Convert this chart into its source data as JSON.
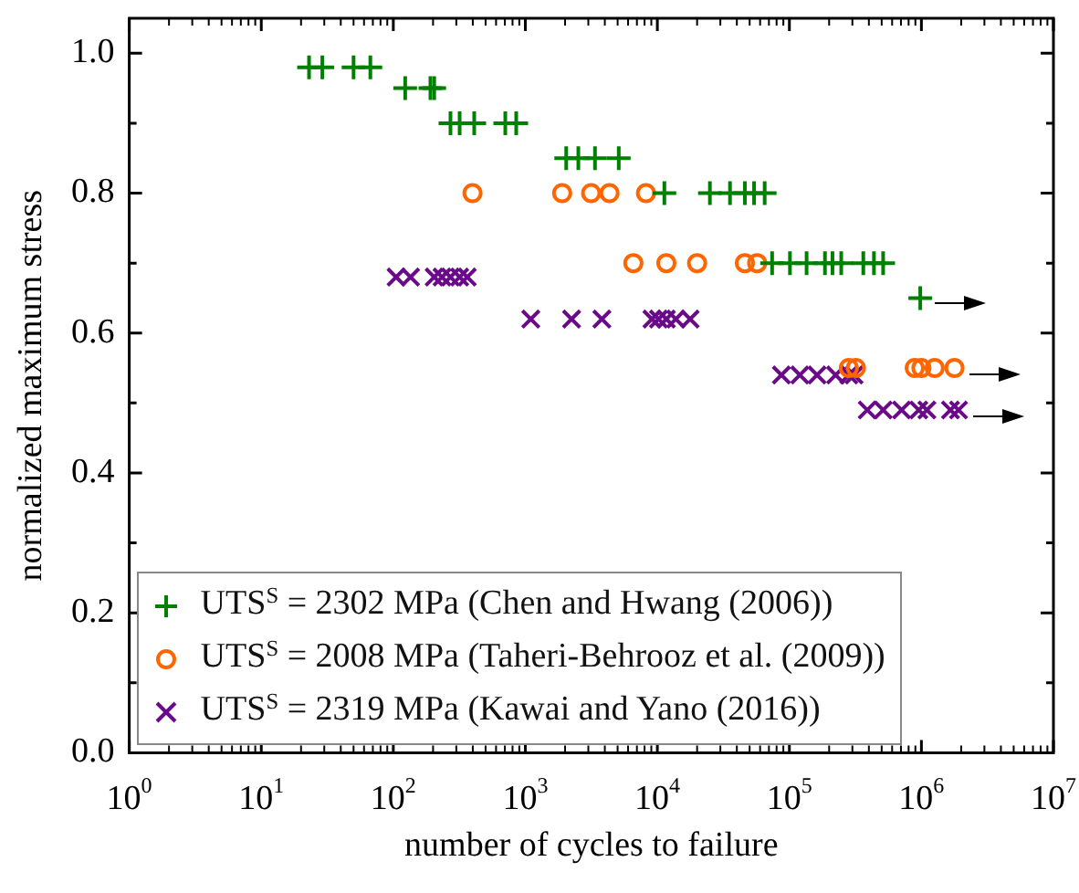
{
  "chart_data": {
    "type": "scatter",
    "xlabel": "number of cycles to failure",
    "ylabel": "normalized maximum stress",
    "log": "x",
    "xlim": [
      1,
      10000000
    ],
    "xticks": [
      {
        "value": 1,
        "label": "10$^{0}$"
      },
      {
        "value": 10,
        "label": "10$^{1}$"
      },
      {
        "value": 100,
        "label": "10$^{2}$"
      },
      {
        "value": 1000,
        "label": "10$^{3}$"
      },
      {
        "value": 10000,
        "label": "10$^{4}$"
      },
      {
        "value": 100000,
        "label": "10$^{5}$"
      },
      {
        "value": 1000000,
        "label": "10$^{6}$"
      },
      {
        "value": 10000000,
        "label": "10$^{7}$"
      }
    ],
    "ylim": [
      0,
      1.05
    ],
    "yticks": [
      {
        "value": 0,
        "label": "0.0"
      },
      {
        "value": 0.2,
        "label": "0.2"
      },
      {
        "value": 0.4,
        "label": "0.4"
      },
      {
        "value": 0.6,
        "label": "0.6"
      },
      {
        "value": 0.8,
        "label": "0.8"
      },
      {
        "value": 1,
        "label": "1.0"
      }
    ],
    "grid": false,
    "legend": "bottom left",
    "series": [
      {
        "name": "UTS$^{S}$ = 2302 MPa (Chen and Hwang (2006))",
        "color": "#008000",
        "marker": "cross",
        "x": [
          23,
          29,
          50,
          67,
          123,
          191,
          204,
          271,
          318,
          410,
          705,
          853,
          2040,
          2520,
          3370,
          5100,
          11300,
          25000,
          35500,
          46000,
          54000,
          65000,
          74000,
          101000,
          135000,
          186000,
          212000,
          247000,
          363000,
          437000,
          513000,
          980000
        ],
        "values": [
          0.98,
          0.98,
          0.98,
          0.98,
          0.95,
          0.95,
          0.95,
          0.9,
          0.9,
          0.9,
          0.9,
          0.9,
          0.85,
          0.85,
          0.85,
          0.85,
          0.8,
          0.8,
          0.8,
          0.8,
          0.8,
          0.8,
          0.7,
          0.7,
          0.7,
          0.7,
          0.7,
          0.7,
          0.7,
          0.7,
          0.7,
          0.65
        ]
      },
      {
        "name": "UTS$^{S}$ = 2008 MPa (Taheri-Behrooz et al. (2009))",
        "color": "#ff6600",
        "marker": "circle",
        "x": [
          398,
          1900,
          3150,
          4340,
          8200,
          6580,
          11700,
          20000,
          46000,
          57000,
          282000,
          319000,
          890000,
          1000000,
          1260000,
          1780000
        ],
        "values": [
          0.8,
          0.8,
          0.8,
          0.8,
          0.8,
          0.7,
          0.7,
          0.7,
          0.7,
          0.7,
          0.55,
          0.55,
          0.55,
          0.55,
          0.55,
          0.55
        ]
      },
      {
        "name": "UTS$^{S}$ = 2319 MPa (Kawai and Yano (2016))",
        "color": "#6a0a8a",
        "marker": "cross_rotated",
        "x": [
          105,
          135,
          204,
          234,
          271,
          318,
          363,
          1100,
          2240,
          3800,
          9100,
          10200,
          11700,
          13800,
          17700,
          87000,
          120000,
          162000,
          224000,
          282000,
          309000,
          389000,
          513000,
          708000,
          955000,
          1100000,
          1660000,
          1910000
        ],
        "values": [
          0.68,
          0.68,
          0.68,
          0.68,
          0.68,
          0.68,
          0.68,
          0.62,
          0.62,
          0.62,
          0.62,
          0.62,
          0.62,
          0.62,
          0.62,
          0.54,
          0.54,
          0.54,
          0.54,
          0.54,
          0.54,
          0.49,
          0.49,
          0.49,
          0.49,
          0.49,
          0.49,
          0.49
        ]
      }
    ]
  }
}
